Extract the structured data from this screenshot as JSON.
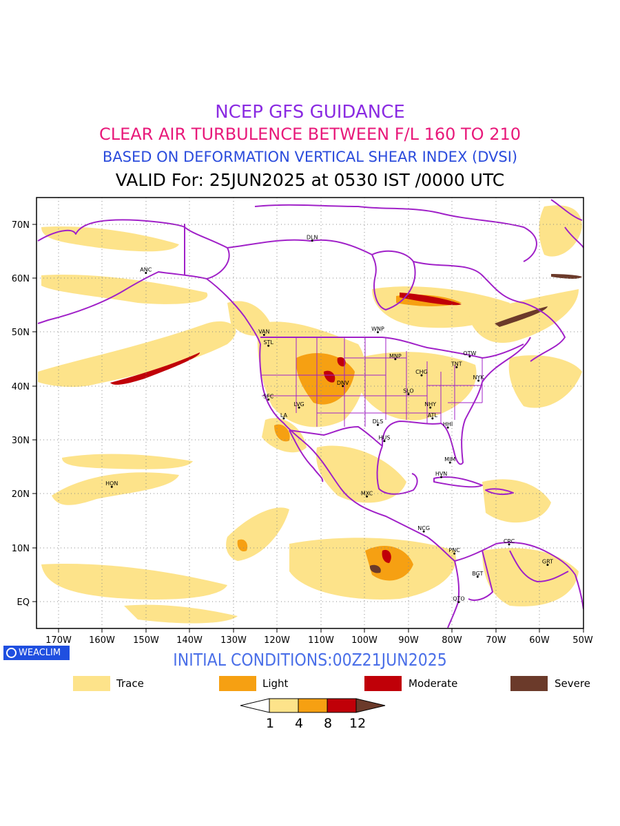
{
  "titles": {
    "line1": "NCEP GFS GUIDANCE",
    "line2": "CLEAR AIR TURBULENCE BETWEEN F/L 160 TO 210",
    "line3": "BASED ON DEFORMATION VERTICAL SHEAR INDEX (DVSI)",
    "line4": "VALID For: 25JUN2025 at 0530 IST /0000 UTC"
  },
  "colors": {
    "line1": "#8a2be2",
    "line2": "#e8197a",
    "line3": "#2a4bdc",
    "boundary": "#a020c8",
    "trace": "#fde38a",
    "light": "#f6a012",
    "moderate": "#c00008",
    "severe": "#6b3a2a",
    "ocean_bg": "#ffffff"
  },
  "map": {
    "lon_range": [
      -175,
      -50
    ],
    "lat_range": [
      -5,
      75
    ],
    "x_ticks": [
      "170W",
      "160W",
      "150W",
      "140W",
      "130W",
      "120W",
      "110W",
      "100W",
      "90W",
      "80W",
      "70W",
      "60W",
      "50W"
    ],
    "y_ticks": [
      "EQ",
      "10N",
      "20N",
      "30N",
      "40N",
      "50N",
      "60N",
      "70N"
    ],
    "grid": "dotted",
    "stations": [
      {
        "code": "ANC",
        "lon": -150,
        "lat": 61
      },
      {
        "code": "DLN",
        "lon": -112,
        "lat": 67
      },
      {
        "code": "VAN",
        "lon": -123,
        "lat": 49.5
      },
      {
        "code": "STL",
        "lon": -122,
        "lat": 47.5
      },
      {
        "code": "WNP",
        "lon": -97,
        "lat": 50
      },
      {
        "code": "MNP",
        "lon": -93,
        "lat": 45
      },
      {
        "code": "OTW",
        "lon": -76,
        "lat": 45.5
      },
      {
        "code": "TNT",
        "lon": -79,
        "lat": 43.5
      },
      {
        "code": "CHG",
        "lon": -87,
        "lat": 42
      },
      {
        "code": "NYK",
        "lon": -74,
        "lat": 41
      },
      {
        "code": "DNV",
        "lon": -105,
        "lat": 40
      },
      {
        "code": "SFC",
        "lon": -122,
        "lat": 37.5
      },
      {
        "code": "LVG",
        "lon": -115,
        "lat": 36
      },
      {
        "code": "SLO",
        "lon": -90,
        "lat": 38.5
      },
      {
        "code": "LA",
        "lon": -118.5,
        "lat": 34
      },
      {
        "code": "NHY",
        "lon": -85,
        "lat": 36
      },
      {
        "code": "ATL",
        "lon": -84.5,
        "lat": 34
      },
      {
        "code": "DLS",
        "lon": -97,
        "lat": 32.8
      },
      {
        "code": "HHI",
        "lon": -81,
        "lat": 32.3
      },
      {
        "code": "HUS",
        "lon": -95.5,
        "lat": 29.8
      },
      {
        "code": "MIM",
        "lon": -80.5,
        "lat": 25.8
      },
      {
        "code": "HVN",
        "lon": -82.5,
        "lat": 23.1
      },
      {
        "code": "HON",
        "lon": -157.8,
        "lat": 21.3
      },
      {
        "code": "MXC",
        "lon": -99.5,
        "lat": 19.5
      },
      {
        "code": "NCG",
        "lon": -86.5,
        "lat": 13
      },
      {
        "code": "CRC",
        "lon": -67,
        "lat": 10.6
      },
      {
        "code": "PNC",
        "lon": -79.5,
        "lat": 8.9
      },
      {
        "code": "GRT",
        "lon": -58.2,
        "lat": 6.8
      },
      {
        "code": "BGT",
        "lon": -74.2,
        "lat": 4.6
      },
      {
        "code": "QTO",
        "lon": -78.5,
        "lat": -0.1
      }
    ]
  },
  "badge": {
    "label": "WEACLIM"
  },
  "initial_conditions": "INITIAL CONDITIONS:00Z21JUN2025",
  "legend": {
    "items": [
      {
        "label": "Trace",
        "color": "#fde38a"
      },
      {
        "label": "Light",
        "color": "#f6a012"
      },
      {
        "label": "Moderate",
        "color": "#c00008"
      },
      {
        "label": "Severe",
        "color": "#6b3a2a"
      }
    ]
  },
  "colorbar": {
    "levels": [
      "1",
      "4",
      "8",
      "12"
    ],
    "colors": [
      "#fde38a",
      "#f6a012",
      "#c00008",
      "#6b3a2a"
    ]
  }
}
